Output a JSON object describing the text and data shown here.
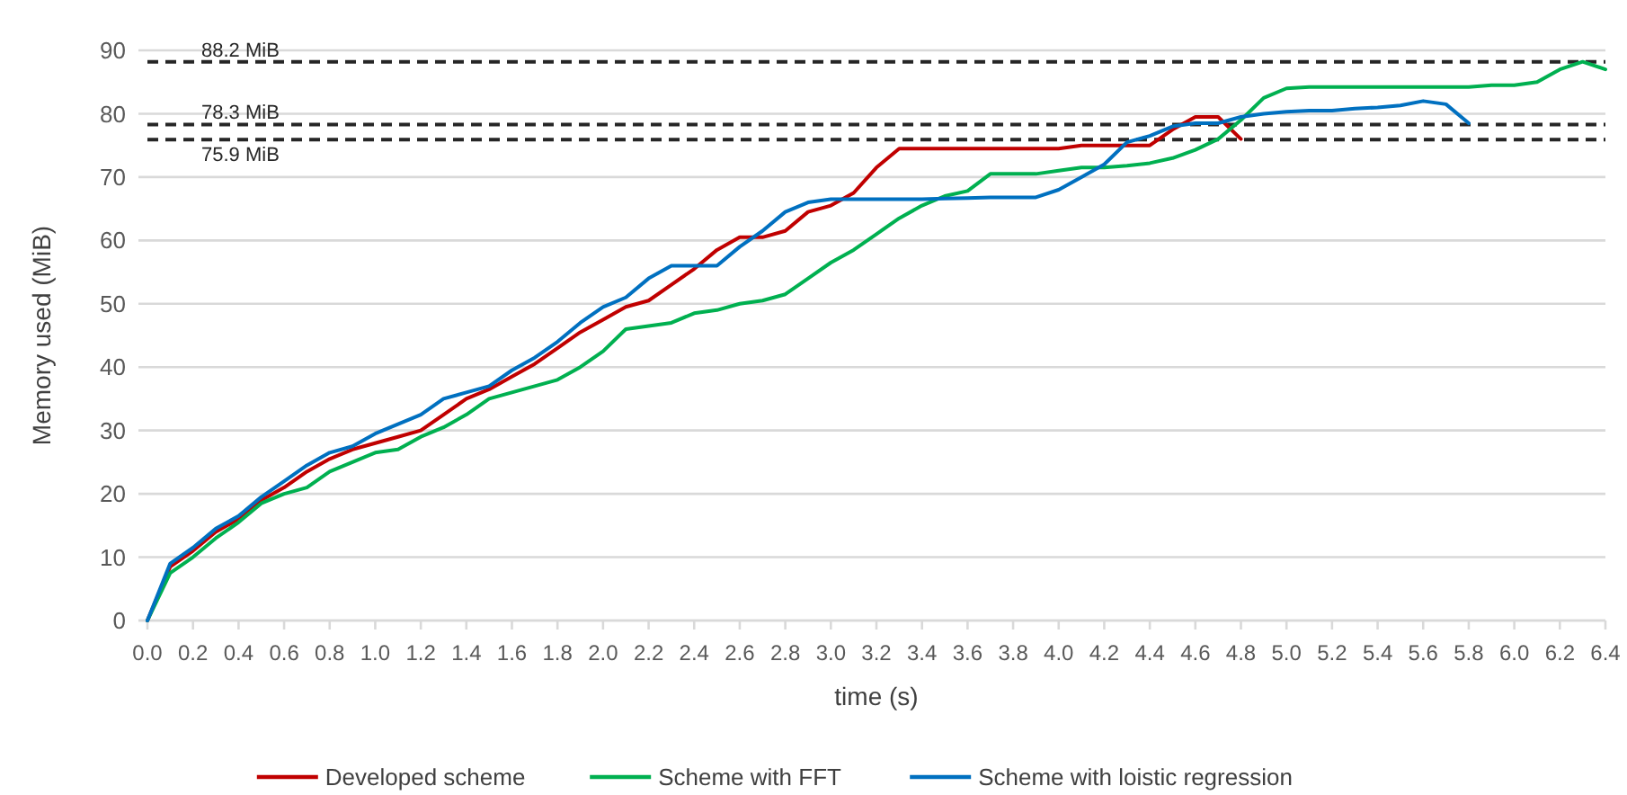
{
  "chart_data": {
    "type": "line",
    "xlabel": "time (s)",
    "ylabel": "Memory used (MiB)",
    "xlim": [
      0,
      6.4
    ],
    "xticks": [
      {
        "value": 0,
        "label": "0.0"
      },
      {
        "value": 0.2,
        "label": "0.2"
      },
      {
        "value": 0.4,
        "label": "0.4"
      },
      {
        "value": 0.6,
        "label": "0.6"
      },
      {
        "value": 0.8,
        "label": "0.8"
      },
      {
        "value": 1,
        "label": "1.0"
      },
      {
        "value": 1.2,
        "label": "1.2"
      },
      {
        "value": 1.4,
        "label": "1.4"
      },
      {
        "value": 1.6,
        "label": "1.6"
      },
      {
        "value": 1.8,
        "label": "1.8"
      },
      {
        "value": 2,
        "label": "2.0"
      },
      {
        "value": 2.2,
        "label": "2.2"
      },
      {
        "value": 2.4,
        "label": "2.4"
      },
      {
        "value": 2.6,
        "label": "2.6"
      },
      {
        "value": 2.8,
        "label": "2.8"
      },
      {
        "value": 3,
        "label": "3.0"
      },
      {
        "value": 3.2,
        "label": "3.2"
      },
      {
        "value": 3.4,
        "label": "3.4"
      },
      {
        "value": 3.6,
        "label": "3.6"
      },
      {
        "value": 3.8,
        "label": "3.8"
      },
      {
        "value": 4,
        "label": "4.0"
      },
      {
        "value": 4.2,
        "label": "4.2"
      },
      {
        "value": 4.4,
        "label": "4.4"
      },
      {
        "value": 4.6,
        "label": "4.6"
      },
      {
        "value": 4.8,
        "label": "4.8"
      },
      {
        "value": 5,
        "label": "5.0"
      },
      {
        "value": 5.2,
        "label": "5.2"
      },
      {
        "value": 5.4,
        "label": "5.4"
      },
      {
        "value": 5.6,
        "label": "5.6"
      },
      {
        "value": 5.8,
        "label": "5.8"
      },
      {
        "value": 6,
        "label": "6.0"
      },
      {
        "value": 6.2,
        "label": "6.2"
      },
      {
        "value": 6.4,
        "label": "6.4"
      }
    ],
    "ylim": [
      0,
      90
    ],
    "yticks": [
      0,
      10,
      20,
      30,
      40,
      50,
      60,
      70,
      80,
      90
    ],
    "grid": "y",
    "legend": "bottom",
    "marker": "none",
    "line_style": "solid",
    "ref_lines": [
      {
        "axis": "y",
        "value": 88.2,
        "label": "88.2 MiB",
        "color": "#262626",
        "line_style": "dashed"
      },
      {
        "axis": "y",
        "value": 78.3,
        "label": "78.3 MiB",
        "color": "#262626",
        "line_style": "dashed"
      },
      {
        "axis": "y",
        "value": 75.9,
        "label": "75.9 MiB",
        "color": "#262626",
        "line_style": "dashed"
      }
    ],
    "series": [
      {
        "name": "Developed scheme",
        "color": "#c00000",
        "x": [
          0,
          0.1,
          0.2,
          0.3,
          0.4,
          0.5,
          0.6,
          0.7,
          0.8,
          0.9,
          1,
          1.1,
          1.2,
          1.3,
          1.4,
          1.5,
          1.6,
          1.7,
          1.8,
          1.9,
          2,
          2.1,
          2.2,
          2.3,
          2.4,
          2.5,
          2.6,
          2.7,
          2.8,
          2.9,
          3,
          3.1,
          3.2,
          3.3,
          3.4,
          3.5,
          3.6,
          3.7,
          3.8,
          3.9,
          4,
          4.1,
          4.2,
          4.3,
          4.4,
          4.5,
          4.6,
          4.7,
          4.8
        ],
        "values": [
          0,
          8.5,
          11,
          14,
          16,
          19,
          21,
          23.5,
          25.5,
          27,
          28,
          29,
          30,
          32.5,
          35,
          36.5,
          38.5,
          40.5,
          43,
          45.5,
          47.5,
          49.5,
          50.5,
          53,
          55.5,
          58.5,
          60.5,
          60.5,
          61.5,
          64.5,
          65.5,
          67.5,
          71.5,
          74.5,
          74.5,
          74.5,
          74.5,
          74.5,
          74.5,
          74.5,
          74.5,
          75,
          75,
          75,
          75,
          77.5,
          79.5,
          79.5,
          76
        ]
      },
      {
        "name": "Scheme with FFT",
        "color": "#00b050",
        "x": [
          0,
          0.1,
          0.2,
          0.3,
          0.4,
          0.5,
          0.6,
          0.7,
          0.8,
          0.9,
          1,
          1.1,
          1.2,
          1.3,
          1.4,
          1.5,
          1.6,
          1.7,
          1.8,
          1.9,
          2,
          2.1,
          2.2,
          2.3,
          2.4,
          2.5,
          2.6,
          2.7,
          2.8,
          2.9,
          3,
          3.1,
          3.2,
          3.3,
          3.4,
          3.5,
          3.6,
          3.7,
          3.8,
          3.9,
          4,
          4.1,
          4.2,
          4.3,
          4.4,
          4.5,
          4.6,
          4.7,
          4.8,
          4.9,
          5,
          5.1,
          5.2,
          5.3,
          5.4,
          5.5,
          5.6,
          5.7,
          5.8,
          5.9,
          6,
          6.1,
          6.2,
          6.3,
          6.4
        ],
        "values": [
          0,
          7.5,
          10,
          13,
          15.5,
          18.5,
          20,
          21,
          23.5,
          25,
          26.5,
          27,
          29,
          30.5,
          32.5,
          35,
          36,
          37,
          38,
          40,
          42.5,
          46,
          46.5,
          47,
          48.5,
          49,
          50,
          50.5,
          51.5,
          54,
          56.5,
          58.5,
          61,
          63.5,
          65.5,
          67,
          67.8,
          70.5,
          70.5,
          70.5,
          71,
          71.5,
          71.5,
          71.8,
          72.2,
          73,
          74.3,
          76,
          79,
          82.5,
          84,
          84.2,
          84.2,
          84.2,
          84.2,
          84.2,
          84.2,
          84.2,
          84.2,
          84.5,
          84.5,
          85,
          87,
          88.2,
          87
        ]
      },
      {
        "name": "Scheme with loistic regression",
        "color": "#0070c0",
        "x": [
          0,
          0.1,
          0.2,
          0.3,
          0.4,
          0.5,
          0.6,
          0.7,
          0.8,
          0.9,
          1,
          1.1,
          1.2,
          1.3,
          1.4,
          1.5,
          1.6,
          1.7,
          1.8,
          1.9,
          2,
          2.1,
          2.2,
          2.3,
          2.4,
          2.5,
          2.6,
          2.7,
          2.8,
          2.9,
          3,
          3.1,
          3.2,
          3.3,
          3.4,
          3.5,
          3.6,
          3.7,
          3.8,
          3.9,
          4,
          4.1,
          4.2,
          4.3,
          4.4,
          4.5,
          4.6,
          4.7,
          4.8,
          4.9,
          5,
          5.1,
          5.2,
          5.3,
          5.4,
          5.5,
          5.6,
          5.7,
          5.8
        ],
        "values": [
          0,
          9,
          11.5,
          14.5,
          16.5,
          19.5,
          22,
          24.5,
          26.5,
          27.5,
          29.5,
          31,
          32.5,
          35,
          36,
          37,
          39.5,
          41.5,
          44,
          47,
          49.5,
          51,
          54,
          56,
          56,
          56,
          59,
          61.5,
          64.5,
          66,
          66.5,
          66.5,
          66.5,
          66.5,
          66.5,
          66.6,
          66.7,
          66.8,
          66.8,
          66.8,
          68,
          70,
          72,
          75.5,
          76.5,
          78,
          78.5,
          78.5,
          79.5,
          80,
          80.3,
          80.5,
          80.5,
          80.8,
          81,
          81.3,
          82,
          81.5,
          78.5
        ]
      }
    ]
  }
}
